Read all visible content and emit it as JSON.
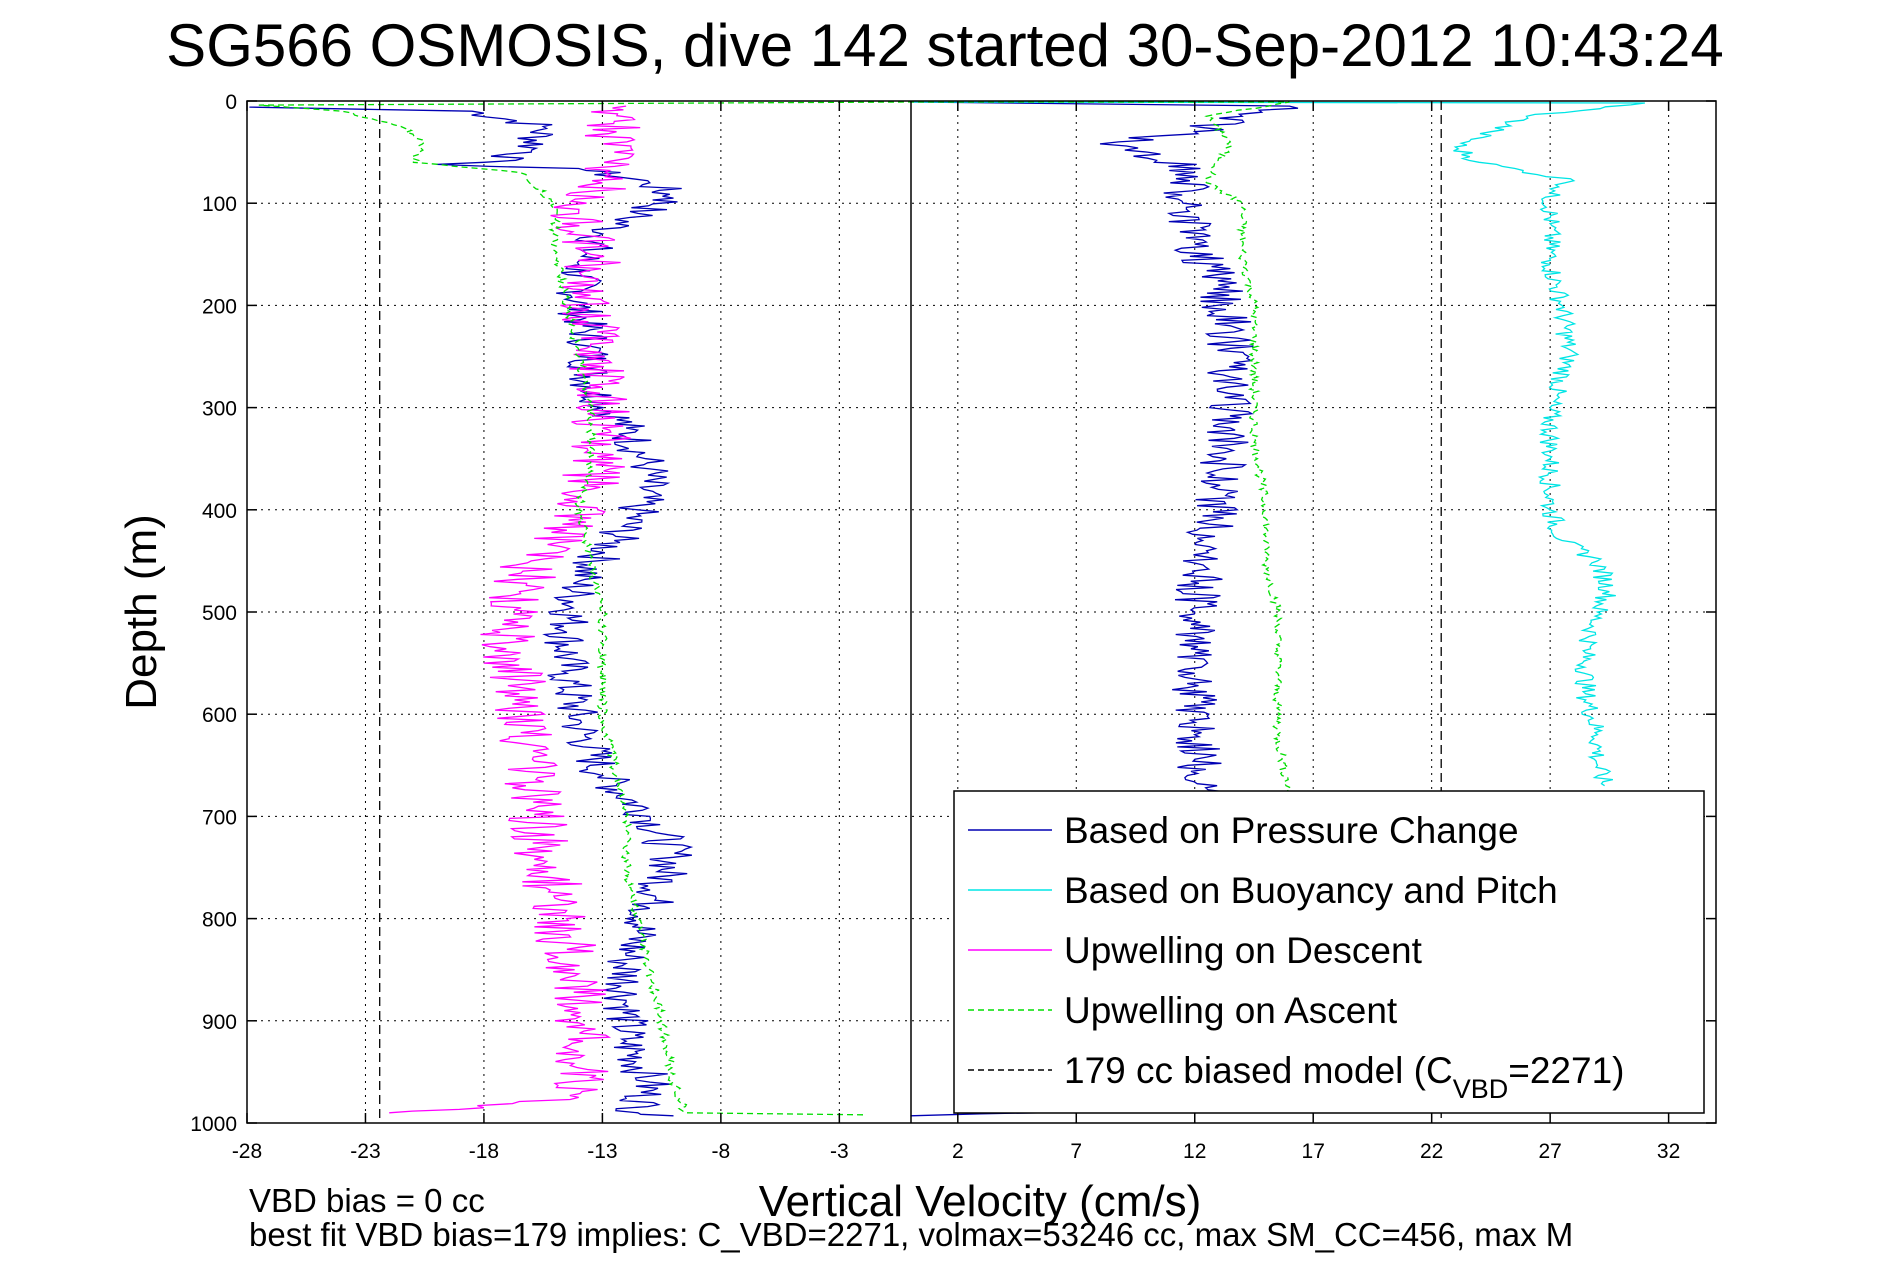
{
  "chart_data": {
    "type": "line",
    "title": "SG566 OSMOSIS, dive 142 started 30-Sep-2012 10:43:24",
    "xlabel": "Vertical Velocity (cm/s)",
    "ylabel": "Depth (m)",
    "xlim": [
      -28,
      34
    ],
    "ylim": [
      1000,
      0
    ],
    "y_reversed": true,
    "grid": true,
    "xticks": [
      "-28",
      "-23",
      "-18",
      "-13",
      "-8",
      "-3",
      "2",
      "7",
      "12",
      "17",
      "22",
      "27",
      "32"
    ],
    "yticks": [
      "0",
      "100",
      "200",
      "300",
      "400",
      "500",
      "600",
      "700",
      "800",
      "900",
      "1000"
    ],
    "legend_position": "bottom-right",
    "footnotes": [
      "VBD bias = 0 cc",
      "best fit VBD bias=179 implies: C_VBD=2271, volmax=53246 cc, max SM_CC=456, max M"
    ],
    "legend": [
      {
        "label": "Based on Pressure Change",
        "color": "#0000b4",
        "style": "solid"
      },
      {
        "label": "Based on Buoyancy and Pitch",
        "color": "#00e5e5",
        "style": "solid"
      },
      {
        "label": "Upwelling on Descent",
        "color": "#ff00ff",
        "style": "solid"
      },
      {
        "label": "Upwelling on Ascent",
        "color": "#00dd00",
        "style": "dashed"
      },
      {
        "label": "179 cc biased model (C",
        "sub": "VBD",
        "tail": "=2271)",
        "color": "#000000",
        "style": "dashed"
      }
    ],
    "series": [
      {
        "name": "Based on Pressure Change (descent)",
        "color": "#0000b4",
        "style": "solid",
        "jitter": 1.0,
        "points": [
          [
            -27.9,
            6
          ],
          [
            -18.5,
            10
          ],
          [
            -15.5,
            25
          ],
          [
            -16,
            50
          ],
          [
            -18,
            60
          ],
          [
            -20,
            62
          ],
          [
            -14,
            66
          ],
          [
            -11,
            80
          ],
          [
            -10,
            95
          ],
          [
            -11.5,
            110
          ],
          [
            -13,
            130
          ],
          [
            -14,
            160
          ],
          [
            -14,
            200
          ],
          [
            -13.5,
            240
          ],
          [
            -13.5,
            280
          ],
          [
            -12,
            320
          ],
          [
            -11,
            360
          ],
          [
            -11.5,
            400
          ],
          [
            -12.5,
            430
          ],
          [
            -14,
            470
          ],
          [
            -14.5,
            520
          ],
          [
            -14.5,
            560
          ],
          [
            -14,
            610
          ],
          [
            -13,
            660
          ],
          [
            -11,
            700
          ],
          [
            -10,
            740
          ],
          [
            -11,
            790
          ],
          [
            -12,
            840
          ],
          [
            -12,
            880
          ],
          [
            -12,
            920
          ],
          [
            -11,
            960
          ],
          [
            -11.5,
            990
          ],
          [
            -10,
            993
          ]
        ]
      },
      {
        "name": "Based on Pressure Change (ascent)",
        "color": "#0000b4",
        "style": "solid",
        "jitter": 1.0,
        "points": [
          [
            0,
            993
          ],
          [
            13.5,
            985
          ],
          [
            14.5,
            940
          ],
          [
            13.5,
            900
          ],
          [
            13,
            850
          ],
          [
            12.5,
            800
          ],
          [
            12.5,
            740
          ],
          [
            12.5,
            680
          ],
          [
            12,
            620
          ],
          [
            12,
            560
          ],
          [
            12,
            500
          ],
          [
            12.5,
            440
          ],
          [
            13,
            380
          ],
          [
            13.5,
            320
          ],
          [
            13.5,
            270
          ],
          [
            13.5,
            220
          ],
          [
            13,
            180
          ],
          [
            12,
            140
          ],
          [
            11.5,
            100
          ],
          [
            12,
            70
          ],
          [
            10,
            50
          ],
          [
            8,
            42
          ],
          [
            12,
            30
          ],
          [
            14,
            15
          ],
          [
            16,
            5
          ],
          [
            0,
            1
          ]
        ]
      },
      {
        "name": "Based on Buoyancy and Pitch",
        "color": "#00e5e5",
        "style": "solid",
        "jitter": 0.45,
        "points": [
          [
            0,
            1
          ],
          [
            31,
            2
          ],
          [
            26,
            15
          ],
          [
            24.5,
            30
          ],
          [
            23,
            45
          ],
          [
            24,
            60
          ],
          [
            28,
            78
          ],
          [
            27,
            90
          ],
          [
            27,
            120
          ],
          [
            27,
            160
          ],
          [
            27.5,
            200
          ],
          [
            27.8,
            250
          ],
          [
            27,
            300
          ],
          [
            27,
            350
          ],
          [
            27,
            400
          ],
          [
            27.5,
            430
          ],
          [
            29,
            450
          ],
          [
            29.5,
            480
          ],
          [
            29,
            500
          ],
          [
            28.5,
            540
          ],
          [
            28.5,
            580
          ],
          [
            29,
            620
          ],
          [
            29,
            650
          ],
          [
            29.3,
            670
          ]
        ]
      },
      {
        "name": "Upwelling on Descent",
        "color": "#ff00ff",
        "style": "solid",
        "jitter": 1.3,
        "points": [
          [
            -22,
            990
          ],
          [
            -18,
            985
          ],
          [
            -14,
            975
          ],
          [
            -14,
            930
          ],
          [
            -14,
            880
          ],
          [
            -14.5,
            830
          ],
          [
            -15,
            780
          ],
          [
            -15.5,
            730
          ],
          [
            -16,
            680
          ],
          [
            -16,
            630
          ],
          [
            -16.5,
            580
          ],
          [
            -17,
            530
          ],
          [
            -16.5,
            480
          ],
          [
            -16,
            450
          ],
          [
            -14.5,
            420
          ],
          [
            -13.5,
            380
          ],
          [
            -13,
            320
          ],
          [
            -13,
            280
          ],
          [
            -13.5,
            240
          ],
          [
            -13.5,
            190
          ],
          [
            -13.5,
            150
          ],
          [
            -14,
            110
          ],
          [
            -13,
            80
          ],
          [
            -12.5,
            50
          ],
          [
            -12.5,
            20
          ],
          [
            -12,
            5
          ]
        ]
      },
      {
        "name": "Upwelling on Ascent",
        "color": "#00dd00",
        "style": "dashed",
        "jitter": 0.2,
        "points": [
          [
            -2,
            992
          ],
          [
            -9.5,
            990
          ],
          [
            -10,
            960
          ],
          [
            -10.5,
            900
          ],
          [
            -11,
            850
          ],
          [
            -11.5,
            800
          ],
          [
            -12,
            750
          ],
          [
            -12,
            700
          ],
          [
            -12.5,
            650
          ],
          [
            -13,
            600
          ],
          [
            -13,
            550
          ],
          [
            -13,
            500
          ],
          [
            -13.5,
            450
          ],
          [
            -14,
            400
          ],
          [
            -13.5,
            350
          ],
          [
            -13.5,
            300
          ],
          [
            -14,
            250
          ],
          [
            -14.5,
            200
          ],
          [
            -15,
            150
          ],
          [
            -15,
            100
          ],
          [
            -16.5,
            70
          ],
          [
            -21,
            60
          ],
          [
            -20.5,
            40
          ],
          [
            -21.5,
            25
          ],
          [
            -24,
            10
          ],
          [
            -27.5,
            4
          ],
          [
            0,
            1
          ],
          [
            16,
            1
          ],
          [
            12.5,
            15
          ],
          [
            13.5,
            40
          ],
          [
            12.5,
            80
          ],
          [
            14,
            100
          ],
          [
            14,
            150
          ],
          [
            14.5,
            200
          ],
          [
            14.5,
            260
          ],
          [
            14.5,
            330
          ],
          [
            15,
            400
          ],
          [
            15,
            450
          ],
          [
            15.5,
            500
          ],
          [
            15.5,
            560
          ],
          [
            15.5,
            620
          ],
          [
            16,
            680
          ]
        ]
      },
      {
        "name": "179 cc biased model",
        "color": "#000000",
        "style": "dashed",
        "jitter": 0,
        "points": [
          [
            -22.4,
            0
          ],
          [
            -22.4,
            1000
          ]
        ]
      },
      {
        "name": "179 cc biased model (ascent)",
        "color": "#000000",
        "style": "dashed",
        "jitter": 0,
        "points": [
          [
            22.4,
            0
          ],
          [
            22.4,
            1000
          ]
        ]
      }
    ]
  }
}
